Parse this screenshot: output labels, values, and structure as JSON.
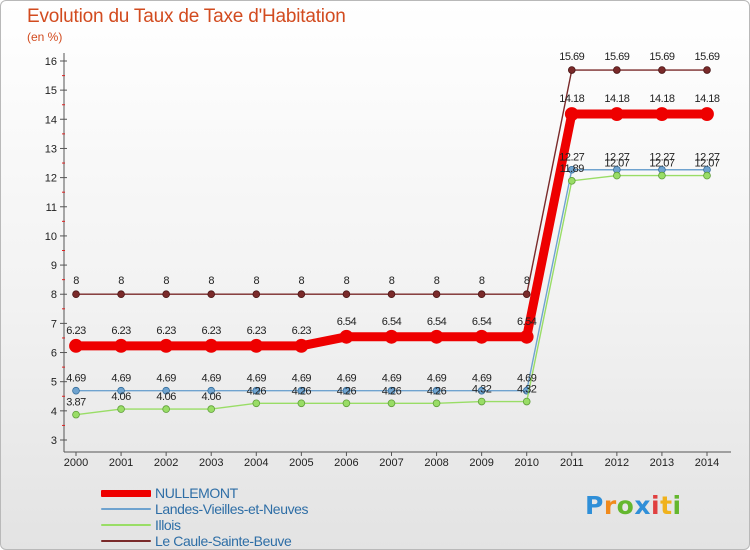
{
  "title": "Evolution du Taux de Taxe d'Habitation",
  "subtitle": "(en %)",
  "chart_data": {
    "type": "line",
    "title": "Evolution du Taux de Taxe d'Habitation",
    "subtitle": "(en %)",
    "x": [
      2000,
      2001,
      2002,
      2003,
      2004,
      2005,
      2006,
      2007,
      2008,
      2009,
      2010,
      2011,
      2012,
      2013,
      2014
    ],
    "ylim": [
      3,
      16
    ],
    "yticks": [
      3,
      4,
      5,
      6,
      7,
      8,
      9,
      10,
      11,
      12,
      13,
      14,
      15,
      16
    ],
    "grid": false,
    "legend_position": "bottom-left",
    "series": [
      {
        "name": "NULLEMONT",
        "color": "#ee0000",
        "values": [
          6.23,
          6.23,
          6.23,
          6.23,
          6.23,
          6.23,
          6.54,
          6.54,
          6.54,
          6.54,
          6.54,
          14.18,
          14.18,
          14.18,
          14.18
        ],
        "labels": [
          "6.23",
          "6.23",
          "6.23",
          "6.23",
          "6.23",
          "6.23",
          "6.54",
          "6.54",
          "6.54",
          "6.54",
          "6.54",
          "14.18",
          "14.18",
          "14.18",
          "14.18"
        ]
      },
      {
        "name": "Landes-Vieilles-et-Neuves",
        "color": "#6fa3cf",
        "values": [
          4.69,
          4.69,
          4.69,
          4.69,
          4.69,
          4.69,
          4.69,
          4.69,
          4.69,
          4.69,
          4.69,
          12.27,
          12.27,
          12.27,
          12.27
        ],
        "labels": [
          "4.69",
          "4.69",
          "4.69",
          "4.69",
          "4.69",
          "4.69",
          "4.69",
          "4.69",
          "4.69",
          "4.69",
          "4.69",
          "12.27",
          "12.27",
          "12.27",
          "12.27"
        ]
      },
      {
        "name": "Illois",
        "color": "#99dd66",
        "values": [
          3.87,
          4.06,
          4.06,
          4.06,
          4.26,
          4.26,
          4.26,
          4.26,
          4.26,
          4.32,
          4.32,
          11.89,
          12.07,
          12.07,
          12.07
        ],
        "labels": [
          "3.87",
          "4.06",
          "4.06",
          "4.06",
          "4.26",
          "4.26",
          "4.26",
          "4.26",
          "4.26",
          "4.32",
          "4.32",
          "11.89",
          "12.07",
          "12.07",
          "12.07"
        ]
      },
      {
        "name": "Le Caule-Sainte-Beuve",
        "color": "#7a2a2a",
        "values": [
          8,
          8,
          8,
          8,
          8,
          8,
          8,
          8,
          8,
          8,
          8,
          15.69,
          15.69,
          15.69,
          15.69
        ],
        "labels": [
          "8",
          "8",
          "8",
          "8",
          "8",
          "8",
          "8",
          "8",
          "8",
          "8",
          "8",
          "15.69",
          "15.69",
          "15.69",
          "15.69"
        ]
      }
    ]
  },
  "legend": {
    "items": [
      {
        "label": "NULLEMONT",
        "color": "#ee0000"
      },
      {
        "label": "Landes-Vieilles-et-Neuves",
        "color": "#6fa3cf"
      },
      {
        "label": "Illois",
        "color": "#99dd66"
      },
      {
        "label": "Le Caule-Sainte-Beuve",
        "color": "#7a2a2a"
      }
    ]
  },
  "logo": {
    "letters": [
      "P",
      "r",
      "o",
      "x",
      "i",
      "t",
      "i"
    ],
    "colors": [
      "#2f8fd8",
      "#f08a1c",
      "#64b72e",
      "#2f8fd8",
      "#e04040",
      "#f0b21c",
      "#64b72e"
    ]
  }
}
